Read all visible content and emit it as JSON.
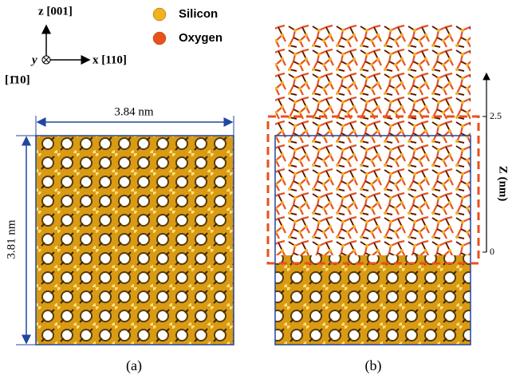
{
  "axes": {
    "z": "z [001]",
    "y": "y",
    "x": "x [110]",
    "y_direction": "[1̄10]"
  },
  "legend": {
    "items": [
      {
        "label": "Silicon",
        "color": "#f0b21e"
      },
      {
        "label": "Oxygen",
        "color": "#e8501e"
      }
    ]
  },
  "panel_a": {
    "width_label": "3.84 nm",
    "height_label": "3.81 nm",
    "caption": "(a)"
  },
  "panel_b": {
    "axis_label": "Z (nm)",
    "tick_labels": [
      "2.5",
      "0"
    ],
    "caption": "(b)"
  }
}
